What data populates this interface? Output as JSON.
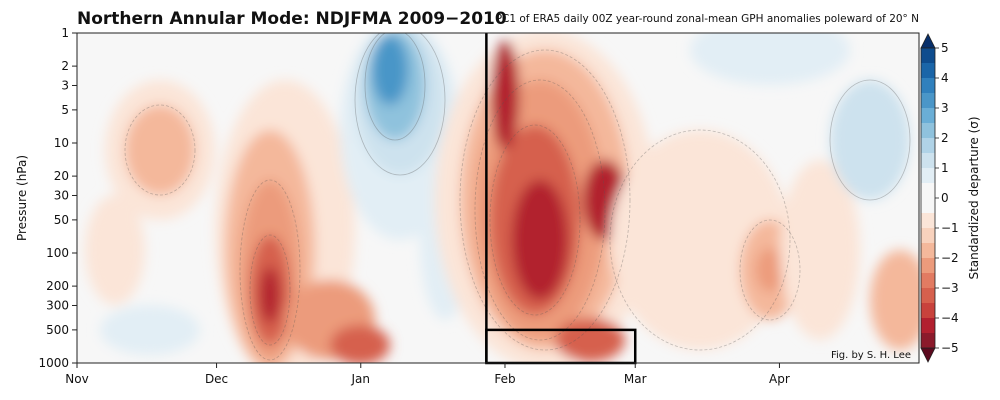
{
  "chart_data": {
    "type": "heatmap",
    "title": "Northern Annular Mode: NDJFMA 2009−2010",
    "subtitle": "PC1 of ERA5 daily 00Z year-round zonal-mean GPH anomalies poleward of 20° N",
    "ylabel": "Pressure (hPa)",
    "y_scale": "log",
    "y_inverted": true,
    "ylim": [
      1000,
      1
    ],
    "y_ticks": [
      1,
      2,
      3,
      5,
      10,
      20,
      30,
      50,
      100,
      200,
      300,
      500,
      1000
    ],
    "x_ticks": [
      "Nov",
      "Dec",
      "Jan",
      "Feb",
      "Mar",
      "Apr"
    ],
    "colorbar": {
      "label": "Standardized departure (σ)",
      "range": [
        -5,
        5
      ],
      "step": 0.5,
      "ticks": [
        5,
        4,
        3,
        2,
        1,
        0,
        -1,
        -2,
        -3,
        -4,
        -5
      ],
      "tick_labels": [
        "5",
        "4",
        "3",
        "2",
        "1",
        "0",
        "−1",
        "−2",
        "−3",
        "−4",
        "−5"
      ],
      "colors": [
        "#5c0a1f",
        "#8b1a2b",
        "#b2202f",
        "#c8423c",
        "#d6604d",
        "#e27b62",
        "#ec9b7c",
        "#f4b89b",
        "#f8d2bd",
        "#fbe5d8",
        "#f7f7f7",
        "#f7f7f7",
        "#e2eef5",
        "#cde2ee",
        "#b0d3e7",
        "#8fc2dd",
        "#6aaed6",
        "#4a96c8",
        "#3080bd",
        "#1a65a8",
        "#0e4c8e",
        "#08306b"
      ]
    },
    "annotations": [
      {
        "type": "vertical-line",
        "x": "Jan 28"
      },
      {
        "type": "box",
        "x": [
          "Jan 28",
          "Mar 1"
        ],
        "y": [
          500,
          1000
        ]
      }
    ]
  },
  "credit": "Fig. by S. H. Lee"
}
